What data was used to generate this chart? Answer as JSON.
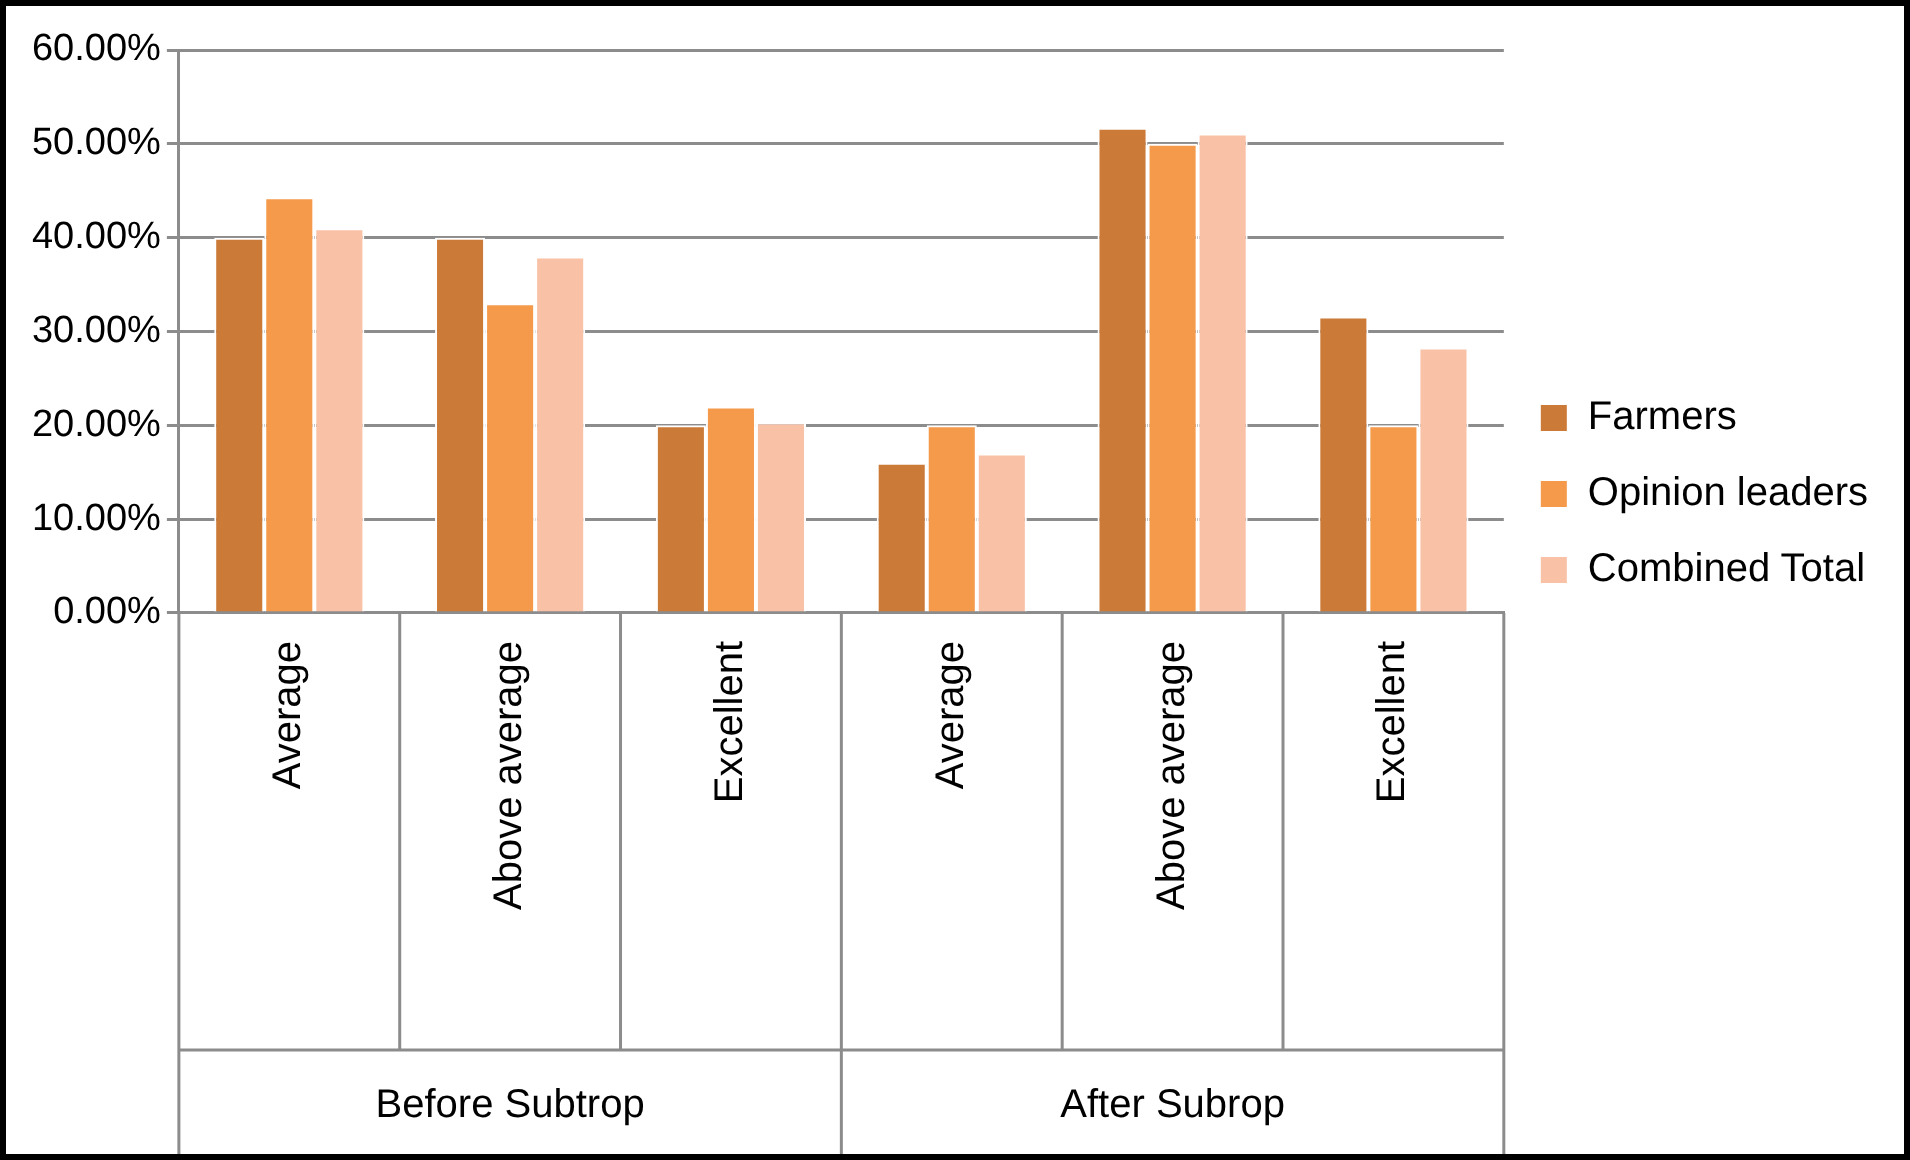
{
  "chart_data": {
    "type": "bar",
    "categories": [
      "Average",
      "Above average",
      "Excellent",
      "Average",
      "Above average",
      "Excellent"
    ],
    "series": [
      {
        "name": "Farmers",
        "color": "#cc7a38",
        "values": [
          40,
          40,
          20,
          16,
          51.7,
          31.6
        ]
      },
      {
        "name": "Opinion leaders",
        "color": "#f5994a",
        "values": [
          44.3,
          33,
          22,
          20,
          50,
          20
        ]
      },
      {
        "name": "Combined Total",
        "color": "#f9c1a6",
        "values": [
          41,
          38,
          20.3,
          17,
          51.1,
          28.3
        ]
      }
    ],
    "annotations": [
      "Before Subtrop",
      "After Subrop"
    ],
    "ylim": [
      0,
      60
    ],
    "yticks": [
      {
        "value": 0,
        "label": "0.00%"
      },
      {
        "value": 10,
        "label": "10.00%"
      },
      {
        "value": 20,
        "label": "20.00%"
      },
      {
        "value": 30,
        "label": "30.00%"
      },
      {
        "value": 40,
        "label": "40.00%"
      },
      {
        "value": 50,
        "label": "50.00%"
      },
      {
        "value": 60,
        "label": "60.00%"
      }
    ],
    "grid": "y",
    "legend": "right"
  }
}
